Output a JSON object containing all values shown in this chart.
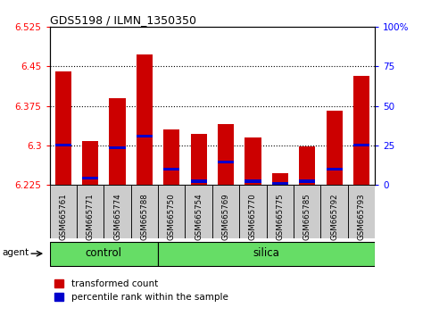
{
  "title": "GDS5198 / ILMN_1350350",
  "samples": [
    "GSM665761",
    "GSM665771",
    "GSM665774",
    "GSM665788",
    "GSM665750",
    "GSM665754",
    "GSM665769",
    "GSM665770",
    "GSM665775",
    "GSM665785",
    "GSM665792",
    "GSM665793"
  ],
  "groups": [
    "control",
    "control",
    "control",
    "control",
    "silica",
    "silica",
    "silica",
    "silica",
    "silica",
    "silica",
    "silica",
    "silica"
  ],
  "red_values": [
    6.44,
    6.308,
    6.39,
    6.472,
    6.33,
    6.322,
    6.34,
    6.315,
    6.248,
    6.298,
    6.365,
    6.432
  ],
  "blue_values": [
    6.3,
    6.238,
    6.295,
    6.318,
    6.255,
    6.232,
    6.268,
    6.232,
    6.228,
    6.232,
    6.255,
    6.3
  ],
  "ymin": 6.225,
  "ymax": 6.525,
  "yticks": [
    6.225,
    6.3,
    6.375,
    6.45,
    6.525
  ],
  "ytick_labels": [
    "6.225",
    "6.3",
    "6.375",
    "6.45",
    "6.525"
  ],
  "right_yticks": [
    0,
    25,
    50,
    75,
    100
  ],
  "right_ytick_labels": [
    "0",
    "25",
    "50",
    "75",
    "100%"
  ],
  "grid_values": [
    6.3,
    6.375,
    6.45
  ],
  "bar_width": 0.6,
  "bar_color": "#cc0000",
  "blue_color": "#0000cc",
  "green_color": "#66dd66",
  "xtick_bg": "#cccccc",
  "legend_items": [
    "transformed count",
    "percentile rank within the sample"
  ],
  "agent_label": "agent",
  "control_label": "control",
  "silica_label": "silica",
  "n_control": 4,
  "n_silica": 8
}
